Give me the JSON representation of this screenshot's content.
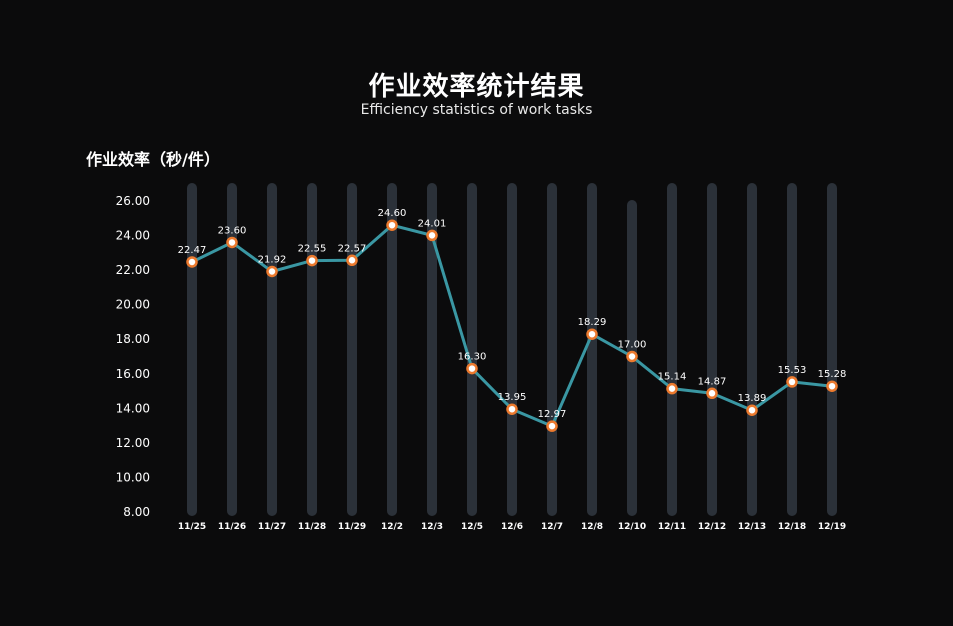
{
  "chart_data": {
    "type": "line",
    "title": "作业效率统计结果",
    "subtitle": "Efficiency statistics of work tasks",
    "ylabel": "作业效率（秒/件）",
    "xlabel": "",
    "categories": [
      "11/25",
      "11/26",
      "11/27",
      "11/28",
      "11/29",
      "12/2",
      "12/3",
      "12/5",
      "12/6",
      "12/7",
      "12/8",
      "12/10",
      "12/11",
      "12/12",
      "12/13",
      "12/18",
      "12/19"
    ],
    "series": [
      {
        "name": "作业效率",
        "values": [
          22.47,
          23.6,
          21.92,
          22.55,
          22.57,
          24.6,
          24.01,
          16.3,
          13.95,
          12.97,
          18.29,
          17.0,
          15.14,
          14.87,
          13.89,
          15.53,
          15.28
        ],
        "labels": [
          "22.47",
          "23.60",
          "21.92",
          "22.55",
          "22.57",
          "24.60",
          "24.01",
          "16.30",
          "13.95",
          "12.97",
          "18.29",
          "17.00",
          "15.14",
          "14.87",
          "13.89",
          "15.53",
          "15.28"
        ]
      }
    ],
    "yticks": [
      "8.00",
      "10.00",
      "12.00",
      "14.00",
      "16.00",
      "18.00",
      "20.00",
      "22.00",
      "24.00",
      "26.00"
    ],
    "ylim": [
      8,
      26
    ],
    "grid": false,
    "legend": "none",
    "colors": {
      "background": "#0b0b0c",
      "column": "#2b3139",
      "line": "#3a97a3",
      "marker_fill": "#ffffff",
      "marker_stroke": "#ec7a2e",
      "text": "#ffffff"
    }
  }
}
